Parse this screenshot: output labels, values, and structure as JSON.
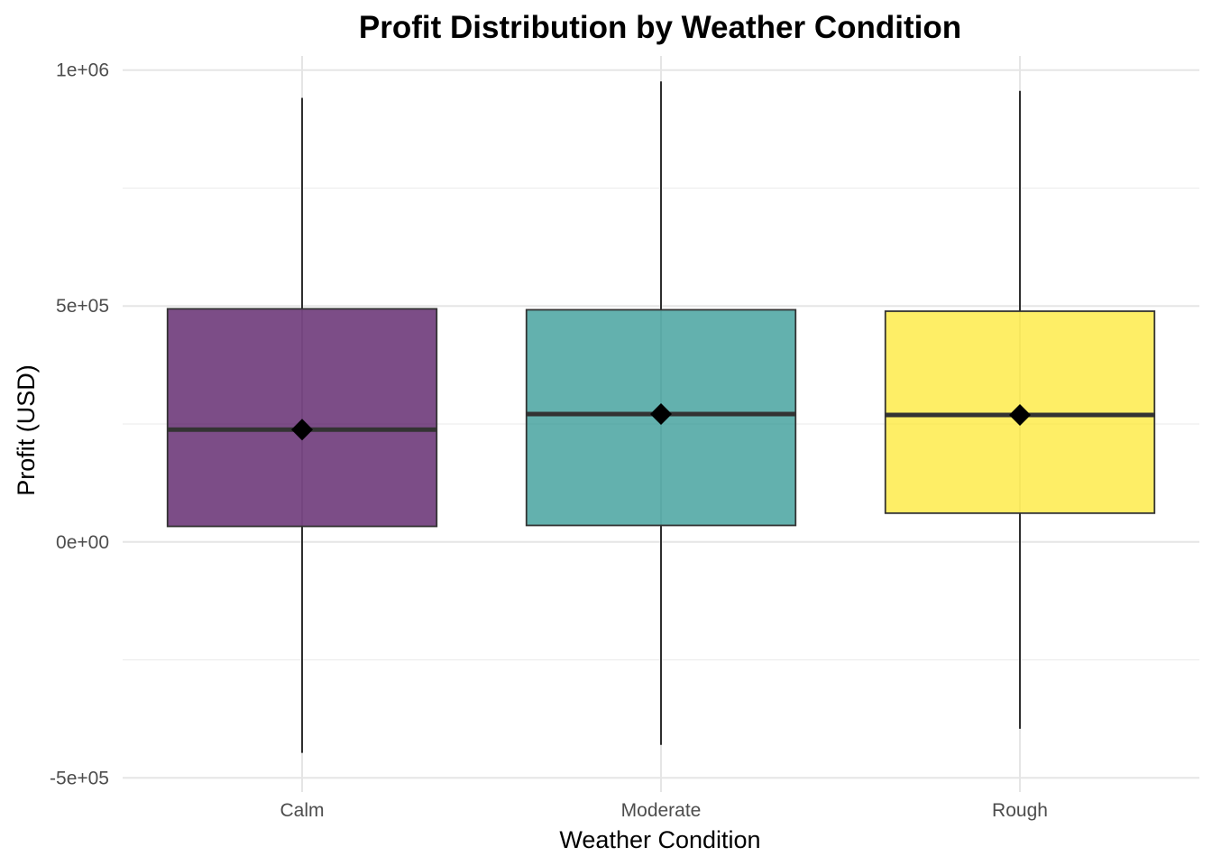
{
  "chart_data": {
    "type": "boxplot",
    "title": "Profit Distribution by Weather Condition",
    "xlabel": "Weather Condition",
    "ylabel": "Profit (USD)",
    "categories": [
      "Calm",
      "Moderate",
      "Rough"
    ],
    "ylim": [
      -530000,
      1030000
    ],
    "y_ticks": [
      -500000,
      0,
      500000,
      1000000
    ],
    "y_tick_labels": [
      "-5e+05",
      "0e+00",
      "5e+05",
      "1e+06"
    ],
    "y_minor_ticks": [
      -250000,
      250000,
      750000
    ],
    "grid": true,
    "legend": "none",
    "boxes": [
      {
        "category": "Calm",
        "whisker_low": -447000,
        "q1": 33000,
        "median": 238000,
        "q3": 494000,
        "whisker_high": 941000,
        "mean": 238000,
        "color": "#440154"
      },
      {
        "category": "Moderate",
        "whisker_low": -430000,
        "q1": 35000,
        "median": 271000,
        "q3": 492000,
        "whisker_high": 976000,
        "mean": 271000,
        "color": "#21908C"
      },
      {
        "category": "Rough",
        "whisker_low": -396000,
        "q1": 61000,
        "median": 269000,
        "q3": 489000,
        "whisker_high": 956000,
        "mean": 269000,
        "color": "#FDE725"
      }
    ]
  }
}
